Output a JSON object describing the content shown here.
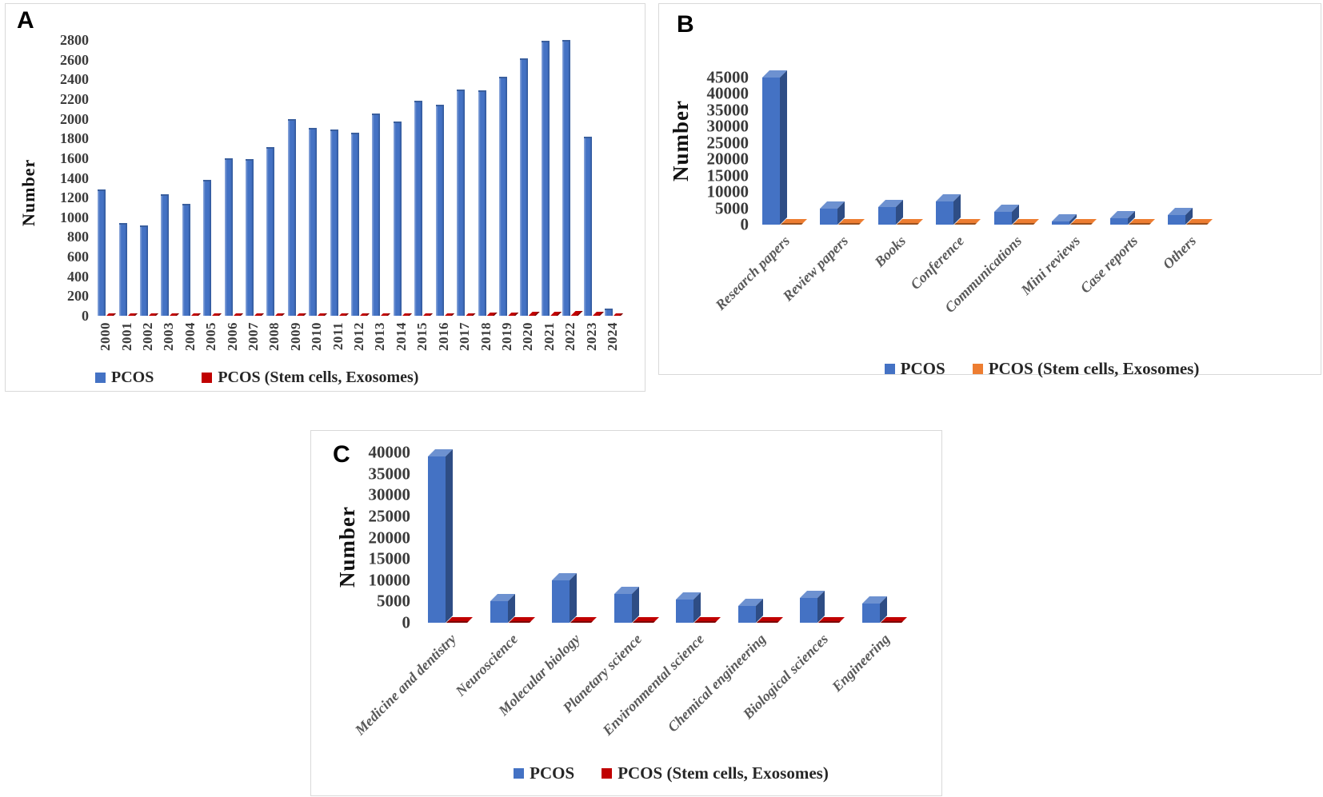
{
  "panels": {
    "a": {
      "letter": "A",
      "y_axis_title": "Number"
    },
    "b": {
      "letter": "B",
      "y_axis_title": "Number"
    },
    "c": {
      "letter": "C",
      "y_axis_title": "Number"
    }
  },
  "colors": {
    "pcos_blue": "#4472C4",
    "stem_red": "#C00000",
    "stem_orange": "#ED7D31"
  },
  "chart_data": [
    {
      "id": "A",
      "type": "bar",
      "title": "",
      "xlabel": "",
      "ylabel": "Number",
      "ylim": [
        0,
        2800
      ],
      "ytick_step": 200,
      "grid": false,
      "legend_position": "bottom",
      "bar_style": "thin-3d",
      "xlabel_style": "vertical",
      "categories": [
        "2000",
        "2001",
        "2002",
        "2003",
        "2004",
        "2005",
        "2006",
        "2007",
        "2008",
        "2009",
        "2010",
        "2011",
        "2012",
        "2013",
        "2014",
        "2015",
        "2016",
        "2017",
        "2018",
        "2019",
        "2020",
        "2021",
        "2022",
        "2023",
        "2024"
      ],
      "series": [
        {
          "name": "PCOS",
          "color": "#4472C4",
          "values": [
            1280,
            940,
            920,
            1230,
            1140,
            1380,
            1600,
            1590,
            1710,
            2000,
            1910,
            1890,
            1860,
            2050,
            1970,
            2180,
            2140,
            2300,
            2290,
            2430,
            2610,
            2790,
            2800,
            1820,
            70
          ]
        },
        {
          "name": "PCOS (Stem cells, Exosomes)",
          "color": "#C00000",
          "values": [
            8,
            6,
            7,
            9,
            10,
            12,
            10,
            11,
            13,
            12,
            14,
            15,
            16,
            18,
            20,
            22,
            25,
            28,
            30,
            35,
            38,
            42,
            45,
            40,
            12
          ]
        }
      ]
    },
    {
      "id": "B",
      "type": "bar",
      "title": "",
      "xlabel": "",
      "ylabel": "Number",
      "ylim": [
        0,
        45000
      ],
      "ytick_step": 5000,
      "grid": false,
      "legend_position": "bottom",
      "bar_style": "box-3d",
      "xlabel_style": "diagonal",
      "categories": [
        "Research papers",
        "Review papers",
        "Books",
        "Conference",
        "Communications",
        "Mini reviews",
        "Case reports",
        "Others"
      ],
      "series": [
        {
          "name": "PCOS",
          "color": "#4472C4",
          "values": [
            45000,
            5000,
            5500,
            7000,
            4000,
            1000,
            2000,
            3000
          ]
        },
        {
          "name": "PCOS (Stem cells, Exosomes)",
          "color": "#ED7D31",
          "values": [
            250,
            180,
            150,
            200,
            180,
            80,
            120,
            150
          ]
        }
      ]
    },
    {
      "id": "C",
      "type": "bar",
      "title": "",
      "xlabel": "",
      "ylabel": "Number",
      "ylim": [
        0,
        40000
      ],
      "ytick_step": 5000,
      "grid": false,
      "legend_position": "bottom",
      "bar_style": "box-3d",
      "xlabel_style": "diagonal",
      "categories": [
        "Medicine and dentistry",
        "Neuroscience",
        "Molecular biology",
        "Planetary science",
        "Environmental science",
        "Chemical engineering",
        "Biological sciences",
        "Engineering"
      ],
      "series": [
        {
          "name": "PCOS",
          "color": "#4472C4",
          "values": [
            39000,
            5000,
            10000,
            6700,
            5400,
            4000,
            5800,
            4500
          ]
        },
        {
          "name": "PCOS (Stem cells, Exosomes)",
          "color": "#C00000",
          "values": [
            400,
            280,
            380,
            300,
            280,
            260,
            300,
            270
          ]
        }
      ]
    }
  ]
}
